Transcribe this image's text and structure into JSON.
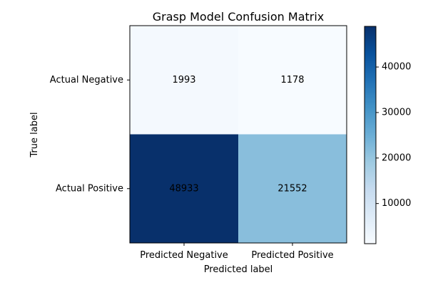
{
  "chart_data": {
    "type": "heatmap",
    "title": "Grasp Model Confusion Matrix",
    "xlabel": "Predicted label",
    "ylabel": "True label",
    "x_categories": [
      "Predicted Negative",
      "Predicted Positive"
    ],
    "y_categories": [
      "Actual Negative",
      "Actual Positive"
    ],
    "values": [
      [
        1993,
        1178
      ],
      [
        48933,
        21552
      ]
    ],
    "colorbar": {
      "range": [
        1178,
        48933
      ],
      "ticks": [
        10000,
        20000,
        30000,
        40000
      ],
      "colormap": "Blues"
    },
    "grid": false
  }
}
